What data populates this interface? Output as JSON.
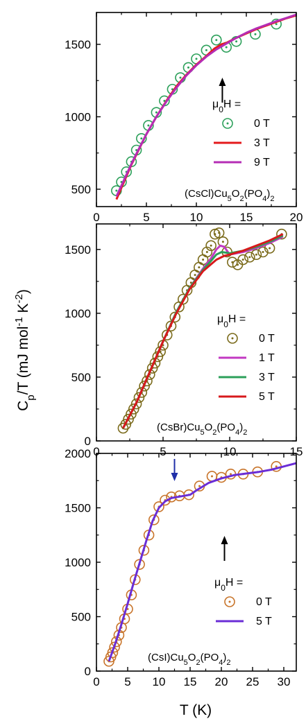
{
  "figure": {
    "ylabel_html": "C<tspan baseline-shift=\"sub\" font-size=\"16\">p</tspan>/T (mJ mol<tspan baseline-shift=\"super\" font-size=\"15\">-1</tspan> K<tspan baseline-shift=\"super\" font-size=\"15\">-2</tspan>)",
    "ylabel_parts": [
      "C",
      "p",
      "/T (mJ mol",
      "-1",
      " K",
      "-2",
      ")"
    ],
    "xlabel": "T (K)"
  },
  "chart_data": [
    {
      "type": "scatter",
      "compound": [
        "(CsCl)Cu",
        "5",
        "O",
        "2",
        "(PO",
        "4",
        ")",
        "2"
      ],
      "legend_title": [
        "μ",
        "0",
        "H ="
      ],
      "xlim": [
        0,
        20
      ],
      "ylim": [
        380,
        1720
      ],
      "xticks": [
        0,
        5,
        10,
        15,
        20
      ],
      "yticks": [
        500,
        1000,
        1500
      ],
      "arrows": [
        {
          "x": 12.6,
          "color": "#000000",
          "dir": "up"
        }
      ],
      "series": [
        {
          "name": "0 T",
          "kind": "markers",
          "color": "#2ca05a",
          "x": [
            2.0,
            2.5,
            3.0,
            3.5,
            4.0,
            4.5,
            5.2,
            6.0,
            6.8,
            7.6,
            8.4,
            9.2,
            10.0,
            11.0,
            12.0,
            13.0,
            14.0,
            15.9,
            18.0
          ],
          "y": [
            490,
            550,
            620,
            690,
            770,
            850,
            940,
            1030,
            1110,
            1190,
            1270,
            1340,
            1400,
            1460,
            1530,
            1480,
            1520,
            1570,
            1640
          ]
        },
        {
          "name": "3 T",
          "kind": "line",
          "color": "#e41a1c",
          "x": [
            2.0,
            2.5,
            3.0,
            3.5,
            4.0,
            5.0,
            6.0,
            7.0,
            8.0,
            9.0,
            10.0,
            11.0,
            11.8,
            12.5,
            13.0,
            14.0,
            15.0,
            16.0,
            17.0,
            18.0,
            19.0,
            20.0
          ],
          "y": [
            430,
            510,
            590,
            670,
            740,
            880,
            1000,
            1110,
            1210,
            1290,
            1360,
            1420,
            1470,
            1500,
            1510,
            1545,
            1575,
            1605,
            1630,
            1655,
            1680,
            1700
          ]
        },
        {
          "name": "9 T",
          "kind": "line",
          "color": "#b52db5",
          "x": [
            2.0,
            2.5,
            3.0,
            3.5,
            4.0,
            5.0,
            6.0,
            7.0,
            8.0,
            9.0,
            10.0,
            11.0,
            12.0,
            13.0,
            14.0,
            15.0,
            16.0,
            17.0,
            18.0,
            19.0,
            20.0
          ],
          "y": [
            450,
            525,
            600,
            675,
            745,
            880,
            1000,
            1105,
            1200,
            1285,
            1355,
            1415,
            1465,
            1505,
            1545,
            1580,
            1610,
            1635,
            1660,
            1682,
            1705
          ]
        }
      ]
    },
    {
      "type": "scatter",
      "compound": [
        "(CsBr)Cu",
        "5",
        "O",
        "2",
        "(PO",
        "4",
        ")",
        "2"
      ],
      "legend_title": [
        "μ",
        "0",
        "H ="
      ],
      "xlim": [
        0,
        15
      ],
      "ylim": [
        0,
        1700
      ],
      "xticks": [
        0,
        5,
        10,
        15
      ],
      "yticks": [
        0,
        500,
        1000,
        1500
      ],
      "arrows": [],
      "series": [
        {
          "name": "0 T",
          "kind": "markers",
          "color": "#7a6a1a",
          "x": [
            2.0,
            2.2,
            2.4,
            2.6,
            2.8,
            3.0,
            3.2,
            3.4,
            3.6,
            3.8,
            4.0,
            4.2,
            4.4,
            4.6,
            4.8,
            5.0,
            5.3,
            5.6,
            5.9,
            6.2,
            6.5,
            6.8,
            7.1,
            7.4,
            7.7,
            8.0,
            8.3,
            8.6,
            8.9,
            9.2,
            9.5,
            9.8,
            10.2,
            10.6,
            11.0,
            11.5,
            12.0,
            12.5,
            13.0,
            13.9
          ],
          "y": [
            100,
            130,
            170,
            210,
            250,
            290,
            340,
            380,
            430,
            470,
            520,
            570,
            610,
            660,
            700,
            750,
            830,
            900,
            970,
            1050,
            1110,
            1180,
            1240,
            1300,
            1360,
            1420,
            1480,
            1530,
            1620,
            1630,
            1560,
            1480,
            1400,
            1380,
            1420,
            1440,
            1460,
            1480,
            1510,
            1620
          ]
        },
        {
          "name": "1 T",
          "kind": "line",
          "color": "#c239c2",
          "x": [
            2.0,
            3.0,
            4.0,
            5.0,
            6.0,
            7.0,
            8.0,
            8.6,
            9.0,
            9.3,
            9.6,
            10.0,
            11.0,
            12.0,
            13.0,
            14.0
          ],
          "y": [
            100,
            300,
            540,
            780,
            1010,
            1200,
            1350,
            1430,
            1500,
            1530,
            1520,
            1460,
            1480,
            1510,
            1550,
            1600
          ]
        },
        {
          "name": "3 T",
          "kind": "line",
          "color": "#2ca05a",
          "x": [
            2.0,
            3.0,
            4.0,
            5.0,
            6.0,
            7.0,
            8.0,
            8.6,
            9.0,
            9.4,
            10.0,
            11.0,
            12.0,
            13.0,
            14.0
          ],
          "y": [
            100,
            300,
            540,
            780,
            1010,
            1200,
            1340,
            1410,
            1460,
            1480,
            1470,
            1490,
            1520,
            1560,
            1610
          ]
        },
        {
          "name": "5 T",
          "kind": "line",
          "color": "#d7191c",
          "x": [
            2.0,
            3.0,
            4.0,
            5.0,
            6.0,
            7.0,
            8.0,
            9.0,
            9.6,
            10.0,
            11.0,
            12.0,
            13.0,
            14.0
          ],
          "y": [
            100,
            300,
            540,
            780,
            1000,
            1190,
            1330,
            1420,
            1450,
            1460,
            1490,
            1530,
            1570,
            1620
          ]
        }
      ]
    },
    {
      "type": "scatter",
      "compound": [
        "(CsI)Cu",
        "5",
        "O",
        "2",
        "(PO",
        "4",
        ")",
        "2"
      ],
      "legend_title": [
        "μ",
        "0",
        "H ="
      ],
      "xlim": [
        0,
        32
      ],
      "ylim": [
        0,
        2000
      ],
      "xticks": [
        0,
        5,
        10,
        15,
        20,
        25,
        30
      ],
      "yticks": [
        0,
        500,
        1000,
        1500,
        2000
      ],
      "arrows": [
        {
          "x": 12.5,
          "color": "#1f2fa8",
          "dir": "down"
        },
        {
          "x": 20.5,
          "color": "#000000",
          "dir": "up"
        }
      ],
      "series": [
        {
          "name": "0 T",
          "kind": "markers",
          "color": "#c8742a",
          "x": [
            2.0,
            2.3,
            2.6,
            2.9,
            3.2,
            3.6,
            4.0,
            4.5,
            5.0,
            5.6,
            6.2,
            6.9,
            7.6,
            8.4,
            9.2,
            10.0,
            11.0,
            12.0,
            13.3,
            14.8,
            16.5,
            18.5,
            20.0,
            21.5,
            23.5,
            25.8,
            28.8
          ],
          "y": [
            90,
            130,
            170,
            220,
            270,
            330,
            400,
            480,
            570,
            700,
            840,
            980,
            1110,
            1250,
            1390,
            1510,
            1570,
            1600,
            1610,
            1620,
            1700,
            1790,
            1780,
            1810,
            1810,
            1830,
            1880
          ]
        },
        {
          "name": "5 T",
          "kind": "line",
          "color": "#6a2dd6",
          "x": [
            2.0,
            3.0,
            4.0,
            5.0,
            6.0,
            7.0,
            8.0,
            9.0,
            10.0,
            11.0,
            12.0,
            13.0,
            14.0,
            15.0,
            16.0,
            18.0,
            20.0,
            22.0,
            24.0,
            26.0,
            28.0,
            30.0,
            32.0
          ],
          "y": [
            90,
            250,
            430,
            620,
            820,
            1010,
            1200,
            1380,
            1500,
            1560,
            1590,
            1600,
            1610,
            1620,
            1660,
            1730,
            1770,
            1800,
            1815,
            1830,
            1850,
            1880,
            1910
          ]
        }
      ]
    }
  ]
}
